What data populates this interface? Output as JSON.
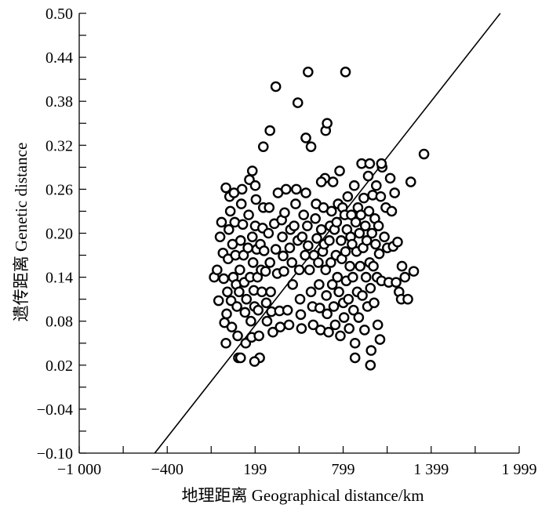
{
  "chart_data": {
    "type": "scatter",
    "xlabel": "地理距离 Geographical distance/km",
    "ylabel": "遗传距离 Genetic distance",
    "xlim": [
      -1000,
      1999
    ],
    "ylim": [
      -0.1,
      0.5
    ],
    "x_ticks": [
      {
        "value": -1000,
        "label": "−1 000"
      },
      {
        "value": -400,
        "label": "−400"
      },
      {
        "value": 199,
        "label": "199"
      },
      {
        "value": 799,
        "label": "799"
      },
      {
        "value": 1399,
        "label": "1 399"
      },
      {
        "value": 1999,
        "label": "1 999"
      }
    ],
    "y_ticks": [
      {
        "value": 0.5,
        "label": "0.50"
      },
      {
        "value": 0.44,
        "label": "0.44"
      },
      {
        "value": 0.38,
        "label": "0.38"
      },
      {
        "value": 0.32,
        "label": "0.32"
      },
      {
        "value": 0.26,
        "label": "0.26"
      },
      {
        "value": 0.2,
        "label": "0.20"
      },
      {
        "value": 0.14,
        "label": "0.14"
      },
      {
        "value": 0.08,
        "label": "0.08"
      },
      {
        "value": 0.02,
        "label": "0.02"
      },
      {
        "value": -0.04,
        "label": "−0.04"
      },
      {
        "value": -0.1,
        "label": "−0.10"
      }
    ],
    "regression_line": {
      "x": [
        -485,
        1870
      ],
      "y": [
        -0.1,
        0.5
      ]
    },
    "grid": false,
    "series": [
      {
        "marker": "open-circle",
        "points": [
          [
            -80,
            0.14
          ],
          [
            -60,
            0.15
          ],
          [
            -50,
            0.108
          ],
          [
            -40,
            0.195
          ],
          [
            -30,
            0.215
          ],
          [
            -20,
            0.173
          ],
          [
            -15,
            0.138
          ],
          [
            -10,
            0.078
          ],
          [
            0,
            0.262
          ],
          [
            0,
            0.05
          ],
          [
            5,
            0.09
          ],
          [
            10,
            0.12
          ],
          [
            15,
            0.165
          ],
          [
            20,
            0.205
          ],
          [
            25,
            0.25
          ],
          [
            30,
            0.23
          ],
          [
            35,
            0.108
          ],
          [
            40,
            0.072
          ],
          [
            45,
            0.185
          ],
          [
            50,
            0.14
          ],
          [
            55,
            0.255
          ],
          [
            60,
            0.215
          ],
          [
            65,
            0.17
          ],
          [
            70,
            0.13
          ],
          [
            75,
            0.1
          ],
          [
            80,
            0.06
          ],
          [
            85,
            0.03
          ],
          [
            90,
            0.12
          ],
          [
            95,
            0.15
          ],
          [
            100,
            0.19
          ],
          [
            105,
            0.24
          ],
          [
            110,
            0.26
          ],
          [
            115,
            0.212
          ],
          [
            120,
            0.17
          ],
          [
            125,
            0.133
          ],
          [
            130,
            0.092
          ],
          [
            135,
            0.05
          ],
          [
            140,
            0.11
          ],
          [
            150,
            0.18
          ],
          [
            155,
            0.225
          ],
          [
            160,
            0.273
          ],
          [
            165,
            0.14
          ],
          [
            170,
            0.08
          ],
          [
            175,
            0.058
          ],
          [
            180,
            0.195
          ],
          [
            185,
            0.16
          ],
          [
            190,
            0.122
          ],
          [
            195,
            0.1
          ],
          [
            200,
            0.21
          ],
          [
            205,
            0.246
          ],
          [
            210,
            0.178
          ],
          [
            215,
            0.14
          ],
          [
            220,
            0.095
          ],
          [
            225,
            0.06
          ],
          [
            230,
            0.03
          ],
          [
            235,
            0.185
          ],
          [
            240,
            0.15
          ],
          [
            245,
            0.12
          ],
          [
            250,
            0.207
          ],
          [
            255,
            0.235
          ],
          [
            260,
            0.176
          ],
          [
            270,
            0.148
          ],
          [
            275,
            0.105
          ],
          [
            280,
            0.08
          ],
          [
            290,
            0.2
          ],
          [
            295,
            0.235
          ],
          [
            300,
            0.16
          ],
          [
            305,
            0.12
          ],
          [
            310,
            0.093
          ],
          [
            320,
            0.065
          ],
          [
            330,
            0.213
          ],
          [
            340,
            0.178
          ],
          [
            350,
            0.145
          ],
          [
            355,
            0.255
          ],
          [
            365,
            0.094
          ],
          [
            370,
            0.072
          ],
          [
            380,
            0.218
          ],
          [
            385,
            0.195
          ],
          [
            390,
            0.169
          ],
          [
            395,
            0.148
          ],
          [
            400,
            0.228
          ],
          [
            410,
            0.26
          ],
          [
            420,
            0.095
          ],
          [
            430,
            0.075
          ],
          [
            435,
            0.18
          ],
          [
            440,
            0.205
          ],
          [
            450,
            0.16
          ],
          [
            455,
            0.13
          ],
          [
            465,
            0.21
          ],
          [
            475,
            0.24
          ],
          [
            480,
            0.26
          ],
          [
            490,
            0.19
          ],
          [
            500,
            0.15
          ],
          [
            505,
            0.11
          ],
          [
            510,
            0.089
          ],
          [
            515,
            0.07
          ],
          [
            520,
            0.195
          ],
          [
            530,
            0.225
          ],
          [
            540,
            0.17
          ],
          [
            545,
            0.255
          ],
          [
            555,
            0.21
          ],
          [
            560,
            0.183
          ],
          [
            570,
            0.15
          ],
          [
            580,
            0.12
          ],
          [
            590,
            0.1
          ],
          [
            595,
            0.075
          ],
          [
            600,
            0.17
          ],
          [
            610,
            0.22
          ],
          [
            615,
            0.24
          ],
          [
            620,
            0.193
          ],
          [
            630,
            0.16
          ],
          [
            635,
            0.13
          ],
          [
            640,
            0.098
          ],
          [
            645,
            0.068
          ],
          [
            650,
            0.205
          ],
          [
            660,
            0.175
          ],
          [
            665,
            0.235
          ],
          [
            670,
            0.185
          ],
          [
            675,
            0.275
          ],
          [
            680,
            0.15
          ],
          [
            685,
            0.115
          ],
          [
            690,
            0.09
          ],
          [
            700,
            0.065
          ],
          [
            705,
            0.19
          ],
          [
            710,
            0.21
          ],
          [
            715,
            0.16
          ],
          [
            720,
            0.23
          ],
          [
            725,
            0.13
          ],
          [
            730,
            0.27
          ],
          [
            735,
            0.1
          ],
          [
            740,
            0.205
          ],
          [
            745,
            0.075
          ],
          [
            750,
            0.17
          ],
          [
            755,
            0.215
          ],
          [
            760,
            0.14
          ],
          [
            765,
            0.24
          ],
          [
            770,
            0.12
          ],
          [
            775,
            0.285
          ],
          [
            780,
            0.06
          ],
          [
            785,
            0.19
          ],
          [
            790,
            0.165
          ],
          [
            795,
            0.235
          ],
          [
            800,
            0.105
          ],
          [
            805,
            0.085
          ],
          [
            810,
            0.225
          ],
          [
            815,
            0.175
          ],
          [
            820,
            0.135
          ],
          [
            825,
            0.205
          ],
          [
            830,
            0.25
          ],
          [
            835,
            0.11
          ],
          [
            840,
            0.07
          ],
          [
            845,
            0.155
          ],
          [
            850,
            0.195
          ],
          [
            855,
            0.225
          ],
          [
            860,
            0.185
          ],
          [
            865,
            0.14
          ],
          [
            870,
            0.095
          ],
          [
            875,
            0.265
          ],
          [
            880,
            0.05
          ],
          [
            885,
            0.215
          ],
          [
            890,
            0.175
          ],
          [
            895,
            0.12
          ],
          [
            900,
            0.235
          ],
          [
            905,
            0.085
          ],
          [
            910,
            0.2
          ],
          [
            915,
            0.155
          ],
          [
            920,
            0.225
          ],
          [
            925,
            0.295
          ],
          [
            930,
            0.115
          ],
          [
            935,
            0.18
          ],
          [
            940,
            0.248
          ],
          [
            945,
            0.068
          ],
          [
            950,
            0.21
          ],
          [
            955,
            0.14
          ],
          [
            960,
            0.19
          ],
          [
            965,
            0.1
          ],
          [
            970,
            0.278
          ],
          [
            975,
            0.23
          ],
          [
            980,
            0.16
          ],
          [
            985,
            0.125
          ],
          [
            990,
            0.04
          ],
          [
            995,
            0.2
          ],
          [
            1000,
            0.252
          ],
          [
            1005,
            0.155
          ],
          [
            1010,
            0.105
          ],
          [
            1015,
            0.22
          ],
          [
            1020,
            0.185
          ],
          [
            1025,
            0.265
          ],
          [
            1030,
            0.14
          ],
          [
            1035,
            0.075
          ],
          [
            1040,
            0.21
          ],
          [
            1045,
            0.172
          ],
          [
            1050,
            0.055
          ],
          [
            1055,
            0.25
          ],
          [
            1060,
            0.135
          ],
          [
            1065,
            0.29
          ],
          [
            1080,
            0.195
          ],
          [
            1090,
            0.235
          ],
          [
            1100,
            0.18
          ],
          [
            1110,
            0.133
          ],
          [
            1120,
            0.275
          ],
          [
            1130,
            0.23
          ],
          [
            1140,
            0.182
          ],
          [
            1150,
            0.255
          ],
          [
            1160,
            0.133
          ],
          [
            1170,
            0.188
          ],
          [
            1180,
            0.12
          ],
          [
            1195,
            0.11
          ],
          [
            1200,
            0.155
          ],
          [
            1220,
            0.14
          ],
          [
            1240,
            0.11
          ],
          [
            1260,
            0.27
          ],
          [
            1280,
            0.148
          ],
          [
            1350,
            0.308
          ],
          [
            490,
            0.378
          ],
          [
            545,
            0.33
          ],
          [
            580,
            0.318
          ],
          [
            340,
            0.4
          ],
          [
            255,
            0.318
          ],
          [
            300,
            0.34
          ],
          [
            680,
            0.34
          ],
          [
            690,
            0.35
          ],
          [
            650,
            0.27
          ],
          [
            180,
            0.285
          ],
          [
            200,
            0.265
          ],
          [
            560,
            0.42
          ],
          [
            815,
            0.42
          ],
          [
            1060,
            0.295
          ],
          [
            980,
            0.295
          ],
          [
            880,
            0.03
          ],
          [
            985,
            0.02
          ],
          [
            100,
            0.03
          ],
          [
            195,
            0.025
          ]
        ]
      }
    ]
  }
}
